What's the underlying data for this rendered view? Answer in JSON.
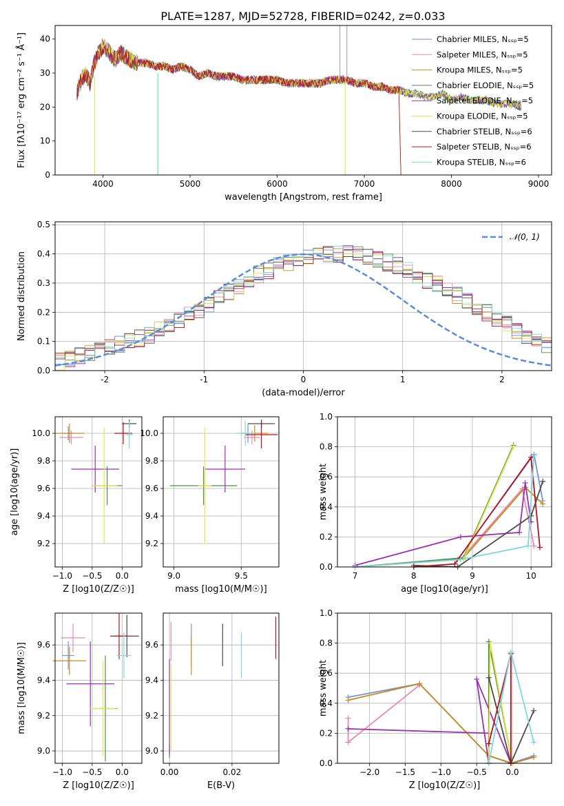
{
  "suptitle": "PLATE=1287, MJD=52728, FIBERID=0242, z=0.033",
  "series_colors": [
    "#6f93d6",
    "#e889b5",
    "#c88a1c",
    "#4f8a4f",
    "#9a2fb0",
    "#e2e84a",
    "#4a4a4a",
    "#b0151f",
    "#7fd6e0"
  ],
  "chart_data": [
    {
      "type": "line",
      "title": "PLATE=1287, MJD=52728, FIBERID=0242, z=0.033",
      "xlabel": "wavelength [Angstrom, rest frame]",
      "ylabel": "Flux [fλ10⁻¹⁷ erg cm⁻² s⁻¹ Å⁻¹]",
      "xlim": [
        3450,
        9150
      ],
      "ylim": [
        0,
        44
      ],
      "xticks": [
        4000,
        5000,
        6000,
        7000,
        8000,
        9000
      ],
      "yticks": [
        0,
        10,
        20,
        30,
        40
      ],
      "grid": false,
      "legend_position": "top-right",
      "spectrum": {
        "x": [
          3700,
          3750,
          3800,
          3850,
          3900,
          3950,
          4000,
          4050,
          4100,
          4150,
          4200,
          4300,
          4400,
          4500,
          4600,
          4700,
          4800,
          4900,
          5000,
          5100,
          5200,
          5300,
          5400,
          5500,
          5600,
          5700,
          5800,
          5900,
          6000,
          6100,
          6200,
          6300,
          6400,
          6500,
          6600,
          6700,
          6800,
          6900,
          7000,
          7100,
          7200,
          7300,
          7400,
          7500,
          7600,
          7700,
          7800,
          7900,
          8000,
          8100,
          8200,
          8300,
          8400,
          8500,
          8600,
          8700,
          8800
        ],
        "y": [
          24,
          28,
          30,
          27,
          33,
          36,
          38,
          37,
          35,
          34,
          36,
          34,
          33,
          33,
          32,
          32,
          31,
          32,
          31,
          29,
          30,
          29,
          29,
          29,
          28,
          28,
          28,
          28,
          28,
          27,
          27,
          27,
          27,
          27,
          28,
          28,
          28,
          27,
          27,
          26,
          26,
          25,
          25,
          24,
          24,
          23,
          23,
          24,
          22,
          23,
          22,
          22,
          22,
          21,
          21,
          21,
          20
        ]
      },
      "series": [
        {
          "name": "Chabrier MILES, N_SSP=5"
        },
        {
          "name": "Salpeter MILES, N_SSP=5"
        },
        {
          "name": "Kroupa MILES, N_SSP=5"
        },
        {
          "name": "Chabrier ELODIE, N_SSP=5"
        },
        {
          "name": "Salpeter ELODIE, N_SSP=5"
        },
        {
          "name": "Kroupa ELODIE, N_SSP=5"
        },
        {
          "name": "Chabrier STELIB, N_SSP=6"
        },
        {
          "name": "Salpeter STELIB, N_SSP=6"
        },
        {
          "name": "Kroupa STELIB, N_SSP=6"
        }
      ]
    },
    {
      "type": "line",
      "title": "",
      "xlabel": "(data-model)/error",
      "ylabel": "Normed distribution",
      "xlim": [
        -2.5,
        2.5
      ],
      "ylim": [
        0,
        0.51
      ],
      "xticks": [
        -2,
        -1,
        0,
        1,
        2
      ],
      "yticks": [
        0.0,
        0.1,
        0.2,
        0.3,
        0.4,
        0.5
      ],
      "grid": true,
      "legend_position": "top-right",
      "reference_curve": {
        "name": "𝒩(0, 1)",
        "mean": 0,
        "sigma": 1
      },
      "histogram": {
        "bin_edges_from": -2.5,
        "bin_width": 0.1,
        "values": [
          0.03,
          0.04,
          0.05,
          0.06,
          0.07,
          0.08,
          0.09,
          0.1,
          0.11,
          0.12,
          0.14,
          0.15,
          0.17,
          0.19,
          0.21,
          0.23,
          0.25,
          0.27,
          0.29,
          0.31,
          0.33,
          0.34,
          0.36,
          0.37,
          0.38,
          0.39,
          0.395,
          0.4,
          0.4,
          0.41,
          0.4,
          0.39,
          0.38,
          0.37,
          0.36,
          0.35,
          0.33,
          0.31,
          0.3,
          0.28,
          0.26,
          0.24,
          0.22,
          0.2,
          0.18,
          0.16,
          0.14,
          0.12,
          0.1,
          0.09
        ]
      }
    },
    {
      "type": "scatter",
      "xlabel": "Z [log10(Z/Z☉)]",
      "ylabel": "age  [log10(age/yr)]",
      "xlim": [
        -1.12,
        0.33
      ],
      "ylim": [
        9.03,
        10.12
      ],
      "xticks": [
        -1.0,
        -0.5,
        0.0
      ],
      "xtick_labels": [
        "−1.0",
        "−0.5",
        "0.0"
      ],
      "yticks": [
        9.2,
        9.4,
        9.6,
        9.8,
        10.0
      ],
      "grid": true,
      "points": [
        {
          "x": -0.9,
          "y": 10.0,
          "xerr": 0.1,
          "yerr": 0.05
        },
        {
          "x": -0.85,
          "y": 9.97,
          "xerr": 0.2,
          "yerr": 0.05
        },
        {
          "x": -0.88,
          "y": 10.0,
          "xerr": 0.25,
          "yerr": 0.07
        },
        {
          "x": -0.25,
          "y": 9.62,
          "xerr": 0.25,
          "yerr": 0.14
        },
        {
          "x": -0.45,
          "y": 9.74,
          "xerr": 0.4,
          "yerr": 0.17
        },
        {
          "x": -0.3,
          "y": 9.62,
          "xerr": 0.22,
          "yerr": 0.42
        },
        {
          "x": 0.12,
          "y": 10.07,
          "xerr": 0.12,
          "yerr": 0.03
        },
        {
          "x": 0.02,
          "y": 10.0,
          "xerr": 0.15,
          "yerr": 0.08
        },
        {
          "x": 0.12,
          "y": 9.99,
          "xerr": 0.06,
          "yerr": 0.1
        }
      ]
    },
    {
      "type": "scatter",
      "xlabel": "mass [log10(M/M☉)]",
      "xlim": [
        8.92,
        9.78
      ],
      "ylim": [
        9.03,
        10.12
      ],
      "xticks": [
        9.0,
        9.5
      ],
      "yticks": [
        9.2,
        9.4,
        9.6,
        9.8,
        10.0
      ],
      "grid": true,
      "points": [
        {
          "x": 9.55,
          "y": 10.0,
          "xerr": 0.05,
          "yerr": 0.07
        },
        {
          "x": 9.58,
          "y": 9.97,
          "xerr": 0.06,
          "yerr": 0.05
        },
        {
          "x": 9.6,
          "y": 10.0,
          "xerr": 0.1,
          "yerr": 0.06
        },
        {
          "x": 9.22,
          "y": 9.62,
          "xerr": 0.25,
          "yerr": 0.14
        },
        {
          "x": 9.38,
          "y": 9.74,
          "xerr": 0.15,
          "yerr": 0.17
        },
        {
          "x": 9.23,
          "y": 9.62,
          "xerr": 0.05,
          "yerr": 0.42
        },
        {
          "x": 9.65,
          "y": 10.07,
          "xerr": 0.1,
          "yerr": 0.03
        },
        {
          "x": 9.65,
          "y": 9.99,
          "xerr": 0.12,
          "yerr": 0.1
        },
        {
          "x": 9.53,
          "y": 10.0,
          "xerr": 0.07,
          "yerr": 0.09
        }
      ]
    },
    {
      "type": "line",
      "xlabel": "age  [log10(age/yr)]",
      "ylabel": "mass weight",
      "xlim": [
        6.7,
        10.35
      ],
      "ylim": [
        0.0,
        1.0
      ],
      "xticks": [
        7,
        8,
        9,
        10
      ],
      "yticks": [
        0.0,
        0.2,
        0.4,
        0.6,
        0.8,
        1.0
      ],
      "grid": true,
      "series": [
        {
          "x": [
            7.0,
            8.75,
            10.05,
            10.2
          ],
          "y": [
            0.0,
            0.05,
            0.75,
            0.44
          ]
        },
        {
          "x": [
            7.0,
            8.8,
            9.85,
            10.05
          ],
          "y": [
            0.0,
            0.05,
            0.52,
            0.14
          ]
        },
        {
          "x": [
            7.0,
            8.85,
            9.9,
            10.2
          ],
          "y": [
            0.0,
            0.06,
            0.53,
            0.42
          ]
        },
        {
          "x": [
            7.0,
            8.85,
            9.7
          ],
          "y": [
            0.0,
            0.06,
            0.81
          ]
        },
        {
          "x": [
            7.0,
            8.8,
            9.8,
            9.9,
            10.0
          ],
          "y": [
            0.01,
            0.2,
            0.23,
            0.56,
            0.3
          ]
        },
        {
          "x": [
            7.0,
            8.85,
            9.7
          ],
          "y": [
            0.0,
            0.05,
            0.8
          ]
        },
        {
          "x": [
            8.0,
            8.75,
            10.0,
            10.2
          ],
          "y": [
            0.01,
            0.0,
            0.34,
            0.57
          ]
        },
        {
          "x": [
            8.0,
            8.7,
            10.0,
            10.15
          ],
          "y": [
            0.0,
            0.02,
            0.73,
            0.13
          ]
        },
        {
          "x": [
            7.0,
            8.8,
            9.95,
            10.05
          ],
          "y": [
            0.0,
            0.05,
            0.14,
            0.74
          ]
        }
      ]
    },
    {
      "type": "scatter",
      "xlabel": "Z [log10(Z/Z☉)]",
      "ylabel": "mass [log10(M/M☉)]",
      "xlim": [
        -1.12,
        0.33
      ],
      "ylim": [
        8.93,
        9.78
      ],
      "xticks": [
        -1.0,
        -0.5,
        0.0
      ],
      "xtick_labels": [
        "−1.0",
        "−0.5",
        "0.0"
      ],
      "yticks": [
        9.0,
        9.2,
        9.4,
        9.6
      ],
      "grid": true,
      "points": [
        {
          "x": -0.9,
          "y": 9.54,
          "xerr": 0.1,
          "yerr": 0.08
        },
        {
          "x": -0.82,
          "y": 9.64,
          "xerr": 0.2,
          "yerr": 0.08
        },
        {
          "x": -0.88,
          "y": 9.51,
          "xerr": 0.28,
          "yerr": 0.08
        },
        {
          "x": -0.28,
          "y": 9.24,
          "xerr": 0.2,
          "yerr": 0.3
        },
        {
          "x": -0.53,
          "y": 9.38,
          "xerr": 0.4,
          "yerr": 0.24
        },
        {
          "x": -0.32,
          "y": 9.24,
          "xerr": 0.22,
          "yerr": 0.27
        },
        {
          "x": 0.08,
          "y": 9.65,
          "xerr": 0.2,
          "yerr": 0.12
        },
        {
          "x": -0.05,
          "y": 9.65,
          "xerr": 0.15,
          "yerr": 0.13
        },
        {
          "x": 0.03,
          "y": 9.54,
          "xerr": 0.12,
          "yerr": 0.13
        }
      ]
    },
    {
      "type": "scatter",
      "xlabel": "E(B-V)",
      "xlim": [
        -0.002,
        0.035
      ],
      "ylim": [
        8.93,
        9.78
      ],
      "xticks": [
        0.0,
        0.02
      ],
      "xtick_labels": [
        "0.00",
        "0.02"
      ],
      "yticks": [
        9.0,
        9.2,
        9.4,
        9.6
      ],
      "grid": true,
      "points": [
        {
          "x": 0.007,
          "y": 9.6,
          "yerr": 0.12
        },
        {
          "x": 0.0005,
          "y": 9.62,
          "yerr": 0.11
        },
        {
          "x": 0.007,
          "y": 9.54,
          "yerr": 0.11
        },
        {
          "x": 0.0,
          "y": 9.0,
          "yerr": 0.04
        },
        {
          "x": 0.0,
          "y": 9.25,
          "yerr": 0.27
        },
        {
          "x": 0.0005,
          "y": 9.25,
          "yerr": 0.25
        },
        {
          "x": 0.017,
          "y": 9.6,
          "yerr": 0.12
        },
        {
          "x": 0.034,
          "y": 9.64,
          "yerr": 0.12
        },
        {
          "x": 0.023,
          "y": 9.54,
          "yerr": 0.13
        }
      ]
    },
    {
      "type": "line",
      "xlabel": "Z [log10(Z/Z☉)]",
      "ylabel": "mass weight",
      "xlim": [
        -2.45,
        0.55
      ],
      "ylim": [
        0.0,
        1.0
      ],
      "xticks": [
        -2.0,
        -1.5,
        -1.0,
        -0.5,
        0.0
      ],
      "xtick_labels": [
        "−2.0",
        "−1.5",
        "−1.0",
        "−0.5",
        "0.0"
      ],
      "yticks": [
        0.0,
        0.2,
        0.4,
        0.6,
        0.8,
        1.0
      ],
      "grid": true,
      "series": [
        {
          "x": [
            -2.3,
            -1.3,
            -0.33,
            -0.02,
            0.3
          ],
          "y": [
            0.44,
            0.53,
            0.05,
            0.0,
            0.05
          ]
        },
        {
          "x": [
            -2.3,
            -2.3,
            -1.3
          ],
          "y": [
            0.3,
            0.14,
            0.52
          ]
        },
        {
          "x": [
            -2.3,
            -1.3,
            -0.33,
            0.0,
            0.3
          ],
          "y": [
            0.42,
            0.53,
            0.05,
            0.0,
            0.04
          ]
        },
        {
          "x": [
            -0.33,
            -0.33,
            0.0
          ],
          "y": [
            0.0,
            0.81,
            0.0
          ]
        },
        {
          "x": [
            -2.3,
            -0.33,
            -0.33,
            -0.5,
            -0.02
          ],
          "y": [
            0.23,
            0.2,
            0.0,
            0.56,
            0.0
          ]
        },
        {
          "x": [
            -0.33,
            -0.31,
            0.0
          ],
          "y": [
            0.0,
            0.8,
            0.0
          ]
        },
        {
          "x": [
            -0.33,
            -0.02,
            0.3
          ],
          "y": [
            0.57,
            0.0,
            0.35
          ]
        },
        {
          "x": [
            -0.33,
            -0.02,
            -0.02
          ],
          "y": [
            0.13,
            0.73,
            0.0
          ]
        },
        {
          "x": [
            -0.33,
            -0.02,
            0.3
          ],
          "y": [
            0.0,
            0.74,
            0.14
          ]
        }
      ]
    }
  ]
}
